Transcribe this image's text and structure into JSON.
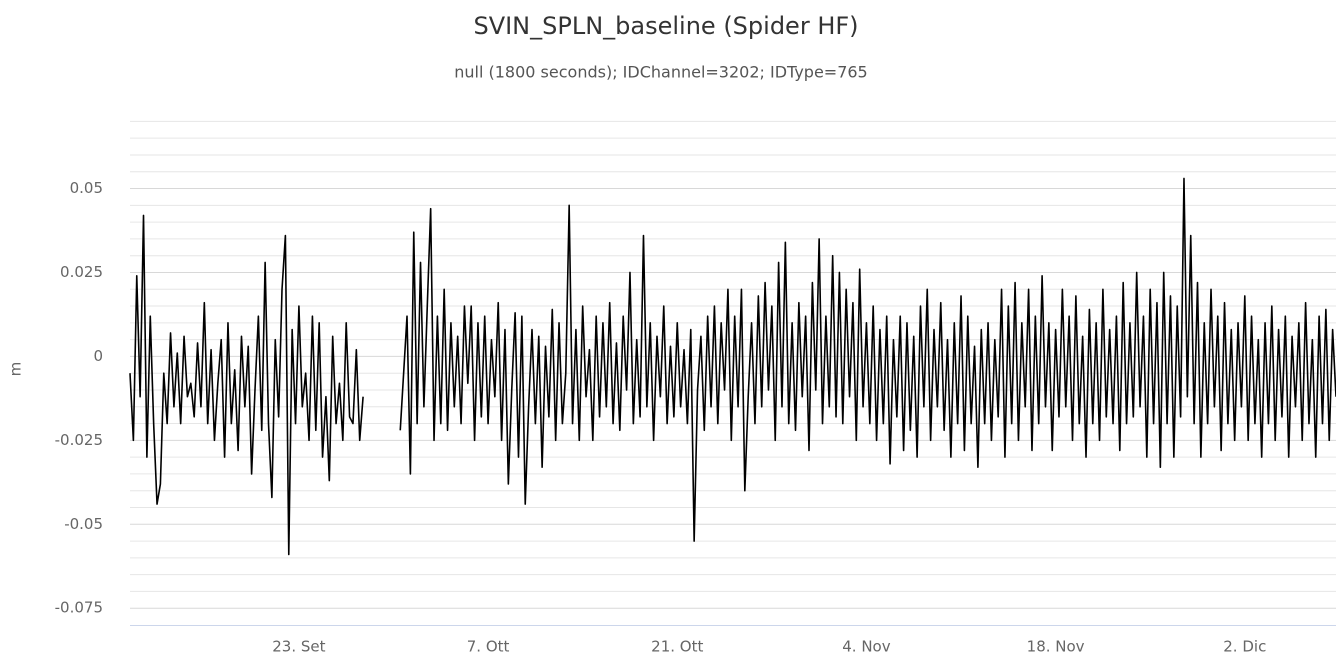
{
  "chart_data": {
    "type": "line",
    "title": "SVIN_SPLN_baseline (Spider HF)",
    "subtitle": "null (1800 seconds); IDChannel=3202; IDType=765",
    "y_label": "m",
    "categories": [
      null,
      null,
      null,
      null,
      null,
      null,
      null,
      null,
      null,
      null,
      null,
      null,
      null,
      null,
      null,
      null,
      null,
      null,
      null,
      null,
      null,
      null,
      null,
      null,
      null,
      null,
      null,
      null,
      null,
      null,
      null,
      null,
      null,
      null,
      null,
      null,
      null,
      null,
      null,
      null,
      null,
      null,
      null,
      null,
      null,
      null,
      null,
      null,
      null,
      null,
      "23. Set",
      null,
      null,
      null,
      null,
      null,
      null,
      null,
      null,
      null,
      null,
      null,
      null,
      null,
      null,
      null,
      null,
      null,
      null,
      null,
      null,
      null,
      null,
      null,
      null,
      null,
      null,
      null,
      null,
      null,
      null,
      null,
      null,
      null,
      null,
      null,
      null,
      null,
      null,
      null,
      null,
      null,
      null,
      null,
      null,
      null,
      null,
      null,
      null,
      null,
      null,
      null,
      null,
      null,
      null,
      null,
      "7. Ott",
      null,
      null,
      null,
      null,
      null,
      null,
      null,
      null,
      null,
      null,
      null,
      null,
      null,
      null,
      null,
      null,
      null,
      null,
      null,
      null,
      null,
      null,
      null,
      null,
      null,
      null,
      null,
      null,
      null,
      null,
      null,
      null,
      null,
      null,
      null,
      null,
      null,
      null,
      null,
      null,
      null,
      null,
      null,
      null,
      null,
      null,
      null,
      null,
      null,
      null,
      null,
      null,
      null,
      null,
      null,
      "21. Ott",
      null,
      null,
      null,
      null,
      null,
      null,
      null,
      null,
      null,
      null,
      null,
      null,
      null,
      null,
      null,
      null,
      null,
      null,
      null,
      null,
      null,
      null,
      null,
      null,
      null,
      null,
      null,
      null,
      null,
      null,
      null,
      null,
      null,
      null,
      null,
      null,
      null,
      null,
      null,
      null,
      null,
      null,
      null,
      null,
      null,
      null,
      null,
      null,
      null,
      null,
      null,
      null,
      null,
      null,
      null,
      "4. Nov",
      null,
      null,
      null,
      null,
      null,
      null,
      null,
      null,
      null,
      null,
      null,
      null,
      null,
      null,
      null,
      null,
      null,
      null,
      null,
      null,
      null,
      null,
      null,
      null,
      null,
      null,
      null,
      null,
      null,
      null,
      null,
      null,
      null,
      null,
      null,
      null,
      null,
      null,
      null,
      null,
      null,
      null,
      null,
      null,
      null,
      null,
      null,
      null,
      null,
      null,
      null,
      null,
      null,
      null,
      null,
      "18. Nov",
      null,
      null,
      null,
      null,
      null,
      null,
      null,
      null,
      null,
      null,
      null,
      null,
      null,
      null,
      null,
      null,
      null,
      null,
      null,
      null,
      null,
      null,
      null,
      null,
      null,
      null,
      null,
      null,
      null,
      null,
      null,
      null,
      null,
      null,
      null,
      null,
      null,
      null,
      null,
      null,
      null,
      null,
      null,
      null,
      null,
      null,
      null,
      null,
      null,
      null,
      null,
      null,
      null,
      null,
      null,
      "2. Dic",
      null,
      null,
      null,
      null,
      null,
      null,
      null,
      null,
      null,
      null,
      null,
      null,
      null,
      null,
      null,
      null,
      null,
      null,
      null,
      null,
      null,
      null,
      null,
      null,
      null,
      null,
      null
    ],
    "series": [
      {
        "color": "#000000",
        "values": [
          -0.005,
          -0.025,
          0.024,
          -0.012,
          0.042,
          -0.03,
          0.012,
          -0.02,
          -0.044,
          -0.038,
          -0.005,
          -0.02,
          0.007,
          -0.015,
          0.001,
          -0.02,
          0.006,
          -0.012,
          -0.008,
          -0.018,
          0.004,
          -0.015,
          0.016,
          -0.02,
          0.002,
          -0.025,
          -0.008,
          0.005,
          -0.03,
          0.01,
          -0.02,
          -0.004,
          -0.028,
          0.006,
          -0.015,
          0.003,
          -0.035,
          -0.01,
          0.012,
          -0.022,
          0.028,
          -0.02,
          -0.042,
          0.005,
          -0.018,
          0.02,
          0.036,
          -0.059,
          0.008,
          -0.02,
          0.015,
          -0.015,
          -0.005,
          -0.025,
          0.012,
          -0.022,
          0.01,
          -0.03,
          -0.012,
          -0.037,
          0.006,
          -0.02,
          -0.008,
          -0.025,
          0.01,
          -0.018,
          -0.02,
          0.002,
          -0.025,
          -0.012,
          null,
          null,
          null,
          null,
          null,
          null,
          null,
          null,
          null,
          null,
          -0.022,
          -0.005,
          0.012,
          -0.035,
          0.037,
          -0.02,
          0.028,
          -0.015,
          0.015,
          0.044,
          -0.025,
          0.012,
          -0.02,
          0.02,
          -0.022,
          0.01,
          -0.015,
          0.006,
          -0.02,
          0.015,
          -0.008,
          0.015,
          -0.025,
          0.01,
          -0.018,
          0.012,
          -0.02,
          0.005,
          -0.012,
          0.016,
          -0.025,
          0.008,
          -0.038,
          -0.01,
          0.013,
          -0.03,
          0.012,
          -0.044,
          -0.015,
          0.008,
          -0.02,
          0.006,
          -0.033,
          0.003,
          -0.018,
          0.014,
          -0.025,
          0.01,
          -0.02,
          -0.005,
          0.045,
          -0.02,
          0.008,
          -0.025,
          0.015,
          -0.012,
          0.002,
          -0.025,
          0.012,
          -0.018,
          0.01,
          -0.015,
          0.016,
          -0.02,
          0.004,
          -0.022,
          0.012,
          -0.01,
          0.025,
          -0.02,
          0.005,
          -0.018,
          0.036,
          -0.015,
          0.01,
          -0.025,
          0.006,
          -0.012,
          0.015,
          -0.02,
          0.003,
          -0.018,
          0.01,
          -0.015,
          0.002,
          -0.02,
          0.008,
          -0.055,
          -0.01,
          0.006,
          -0.022,
          0.012,
          -0.015,
          0.015,
          -0.02,
          0.01,
          -0.01,
          0.02,
          -0.025,
          0.012,
          -0.015,
          0.02,
          -0.04,
          -0.012,
          0.01,
          -0.02,
          0.018,
          -0.015,
          0.022,
          -0.01,
          0.015,
          -0.025,
          0.028,
          -0.015,
          0.034,
          -0.02,
          0.01,
          -0.022,
          0.016,
          -0.012,
          0.012,
          -0.028,
          0.022,
          -0.01,
          0.035,
          -0.02,
          0.012,
          -0.015,
          0.03,
          -0.018,
          0.025,
          -0.02,
          0.02,
          -0.012,
          0.016,
          -0.025,
          0.026,
          -0.015,
          0.01,
          -0.02,
          0.015,
          -0.025,
          0.008,
          -0.02,
          0.012,
          -0.032,
          0.005,
          -0.018,
          0.012,
          -0.028,
          0.01,
          -0.022,
          0.006,
          -0.03,
          0.015,
          -0.015,
          0.02,
          -0.025,
          0.008,
          -0.015,
          0.016,
          -0.022,
          0.005,
          -0.03,
          0.01,
          -0.02,
          0.018,
          -0.028,
          0.012,
          -0.02,
          0.003,
          -0.033,
          0.008,
          -0.02,
          0.01,
          -0.025,
          0.005,
          -0.018,
          0.02,
          -0.03,
          0.015,
          -0.02,
          0.022,
          -0.025,
          0.01,
          -0.015,
          0.02,
          -0.028,
          0.012,
          -0.02,
          0.024,
          -0.015,
          0.01,
          -0.028,
          0.008,
          -0.018,
          0.02,
          -0.015,
          0.012,
          -0.025,
          0.018,
          -0.02,
          0.006,
          -0.03,
          0.014,
          -0.02,
          0.01,
          -0.025,
          0.02,
          -0.018,
          0.008,
          -0.02,
          0.012,
          -0.028,
          0.022,
          -0.02,
          0.01,
          -0.018,
          0.025,
          -0.015,
          0.012,
          -0.03,
          0.02,
          -0.02,
          0.016,
          -0.033,
          0.025,
          -0.02,
          0.018,
          -0.03,
          0.015,
          -0.018,
          0.053,
          -0.012,
          0.036,
          -0.02,
          0.022,
          -0.03,
          0.01,
          -0.02,
          0.02,
          -0.015,
          0.012,
          -0.028,
          0.016,
          -0.02,
          0.008,
          -0.025,
          0.01,
          -0.015,
          0.018,
          -0.025,
          0.012,
          -0.02,
          0.005,
          -0.03,
          0.01,
          -0.02,
          0.015,
          -0.025,
          0.008,
          -0.018,
          0.012,
          -0.03,
          0.006,
          -0.015,
          0.01,
          -0.025,
          0.016,
          -0.02,
          0.005,
          -0.03,
          0.012,
          -0.02,
          0.014,
          -0.025,
          0.008,
          -0.012
        ]
      }
    ],
    "ylim": [
      -0.08,
      0.0725
    ],
    "yticks": [
      -0.075,
      -0.05,
      -0.025,
      0,
      0.025,
      0.05
    ],
    "minor_yticks": [
      -0.07,
      -0.065,
      -0.06,
      -0.055,
      -0.045,
      -0.04,
      -0.035,
      -0.03,
      -0.02,
      -0.015,
      -0.01,
      -0.005,
      0.005,
      0.01,
      0.015,
      0.02,
      0.03,
      0.035,
      0.04,
      0.045,
      0.055,
      0.06,
      0.065,
      0.07
    ],
    "grid": true
  }
}
